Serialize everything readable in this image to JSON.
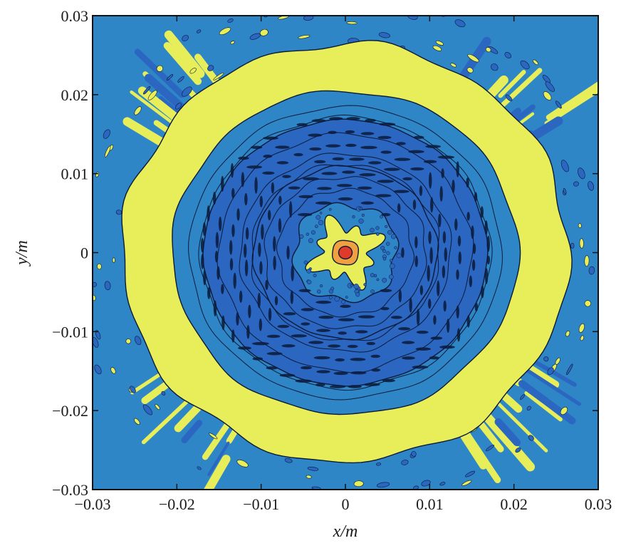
{
  "chart_data": {
    "type": "heatmap",
    "subtype": "filled-contour",
    "title": "",
    "xlabel": "x/m",
    "ylabel": "y/m",
    "xlim": [
      -0.03,
      0.03
    ],
    "ylim": [
      -0.03,
      0.03
    ],
    "xticks": [
      -0.03,
      -0.02,
      -0.01,
      0,
      0.01,
      0.02,
      0.03
    ],
    "yticks": [
      -0.03,
      -0.02,
      -0.01,
      0,
      0.01,
      0.02,
      0.03
    ],
    "xtick_labels": [
      "−0.03",
      "−0.02",
      "−0.01",
      "0",
      "0.01",
      "0.02",
      "0.03"
    ],
    "ytick_labels": [
      "−0.03",
      "−0.02",
      "−0.01",
      "0",
      "0.01",
      "0.02",
      "0.03"
    ],
    "grid": false,
    "legend": "none",
    "colormap": {
      "darkest_blue": "#1f4a9c",
      "dark_blue": "#2b66c0",
      "mid_blue": "#2f86c6",
      "yellow": "#e8ee5a",
      "orange": "#f0a040",
      "red": "#e03a2a",
      "contour_line": "#0b1a3a"
    },
    "center_peak": {
      "x": 0,
      "y": 0,
      "level": "red"
    },
    "rings": [
      {
        "radius_m": 0.0036,
        "level": "yellow"
      },
      {
        "radius_m": 0.0109,
        "level": "dark_blue"
      },
      {
        "radius_m": 0.0205,
        "level": "mid_blue"
      },
      {
        "radius_m": 0.0265,
        "level": "yellow"
      },
      {
        "radius_m": 0.03,
        "level": "mid_blue"
      }
    ]
  }
}
